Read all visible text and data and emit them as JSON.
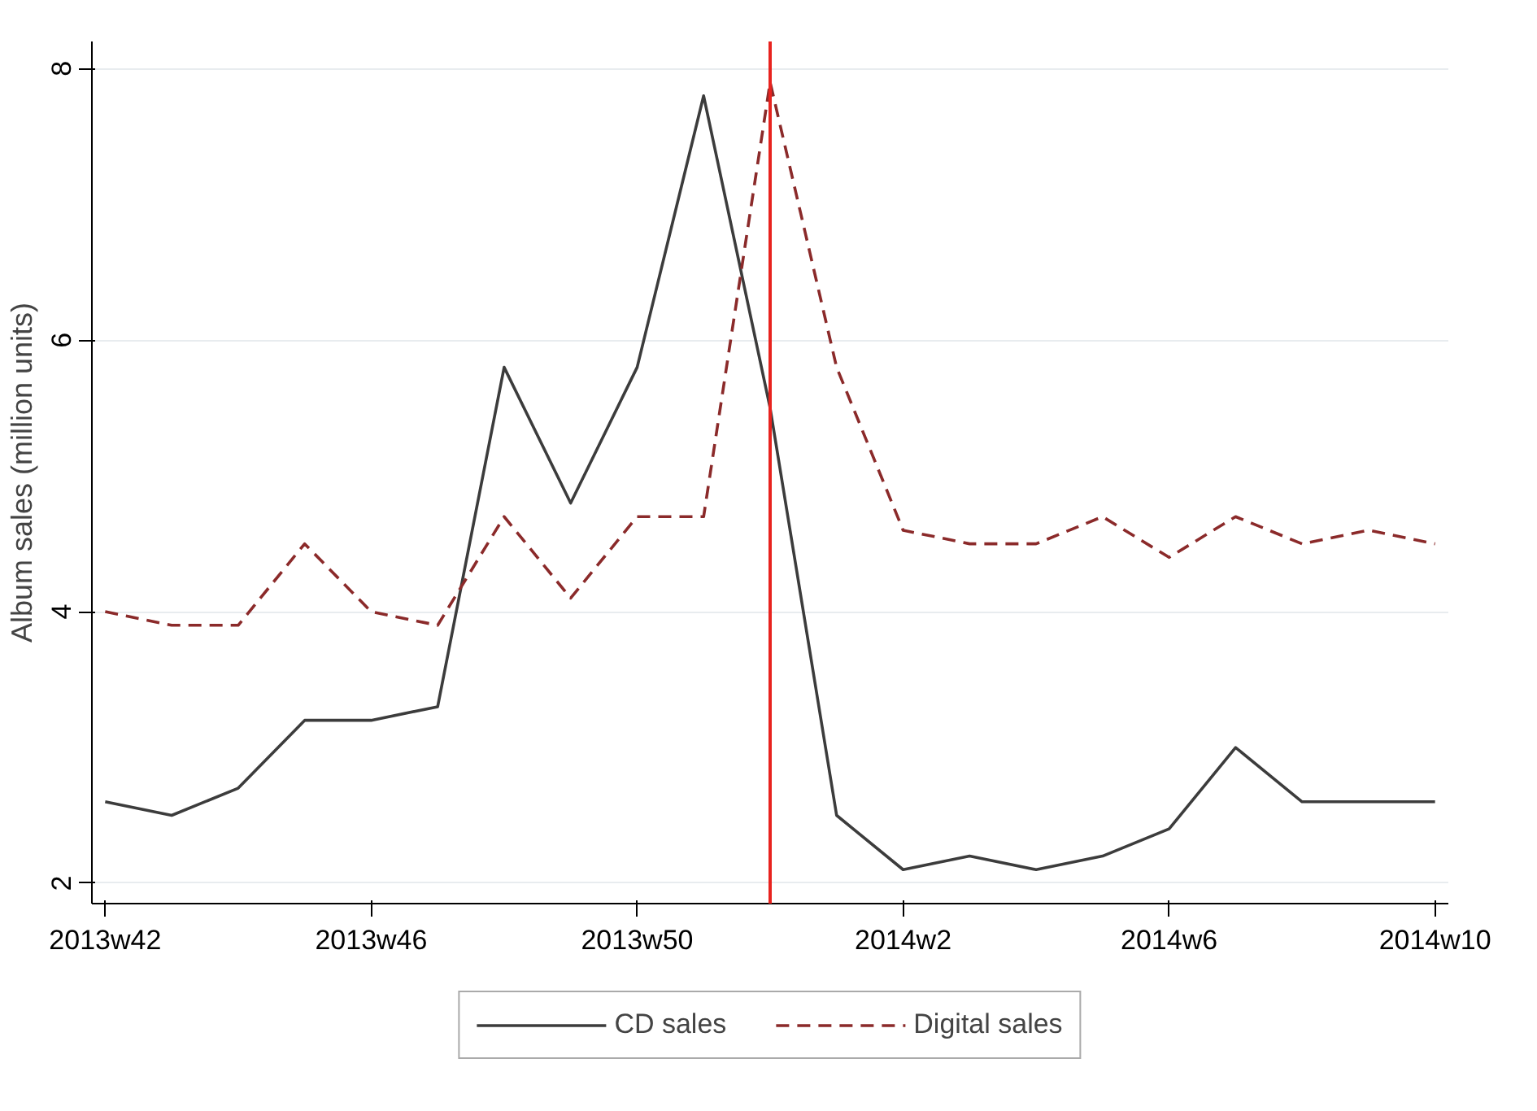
{
  "chart_data": {
    "type": "line",
    "ylabel": "Album sales (million units)",
    "categories": [
      "2013w42",
      null,
      null,
      null,
      "2013w46",
      null,
      null,
      null,
      "2013w50",
      null,
      null,
      null,
      "2014w2",
      null,
      null,
      null,
      "2014w6",
      null,
      null,
      null,
      "2014w10"
    ],
    "series": [
      {
        "name": "CD sales",
        "color": "#3c3c3c",
        "line_style": "solid",
        "values": [
          2.6,
          2.5,
          2.7,
          3.2,
          3.2,
          3.3,
          5.8,
          4.8,
          5.8,
          7.8,
          5.5,
          2.5,
          2.1,
          2.2,
          2.1,
          2.2,
          2.4,
          3.0,
          2.6,
          2.6,
          2.6
        ]
      },
      {
        "name": "Digital sales",
        "color": "#8b2a2a",
        "line_style": "dashed",
        "values": [
          4.0,
          3.9,
          3.9,
          4.5,
          4.0,
          3.9,
          4.7,
          4.1,
          4.7,
          4.7,
          7.9,
          5.8,
          4.6,
          4.5,
          4.5,
          4.7,
          4.4,
          4.7,
          4.5,
          4.6,
          4.5
        ]
      }
    ],
    "ylim": [
      1.85,
      8.2
    ],
    "yticks": [
      2,
      4,
      6,
      8
    ],
    "grid": "y",
    "legend": "bottom"
  }
}
